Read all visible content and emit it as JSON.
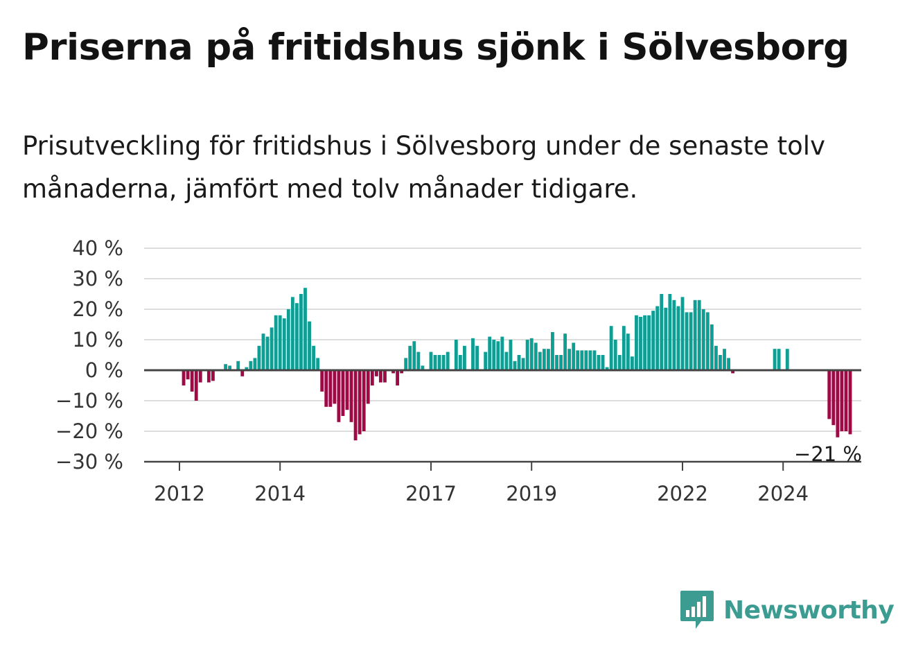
{
  "title": "Priserna på fritidshus sjönk i Sölvesborg",
  "subtitle": "Prisutveckling för fritidshus i Sölvesborg under de senaste tolv månaderna, jämfört med tolv månader tidigare.",
  "logo": {
    "text": "Newsworthy",
    "icon": "bar-chart-speech-bubble-icon"
  },
  "colors": {
    "positive": "#0e9e94",
    "negative": "#9e0a45",
    "grid": "#dddddd",
    "zero_line": "#444444",
    "logo": "#3d9c92"
  },
  "chart_data": {
    "type": "bar",
    "title": "Priserna på fritidshus sjönk i Sölvesborg",
    "xlabel": "",
    "ylabel": "",
    "ylim": [
      -30,
      40
    ],
    "yticks": [
      40,
      30,
      20,
      10,
      0,
      -10,
      -20,
      -30
    ],
    "ytick_labels": [
      "40 %",
      "30 %",
      "20 %",
      "10 %",
      "0 %",
      "−10 %",
      "−20 %",
      "−30 %"
    ],
    "x_start": "2011-10",
    "frequency": "monthly",
    "xticks": [
      "2012",
      "2014",
      "2017",
      "2019",
      "2022",
      "2024"
    ],
    "grid": true,
    "end_annotation": "−21 %",
    "values": [
      null,
      null,
      null,
      null,
      -5,
      -3,
      -7,
      -10,
      -4,
      null,
      -4,
      -3.5,
      null,
      null,
      2,
      1.5,
      null,
      3,
      -2,
      1,
      3,
      4,
      8,
      12,
      11,
      14,
      18,
      18,
      17,
      20,
      24,
      22,
      25,
      27,
      16,
      8,
      4,
      -7,
      -12,
      -12,
      -11,
      -17,
      -15,
      -13,
      -17,
      -23,
      -21,
      -20,
      -11,
      -5,
      -2,
      -4,
      -4,
      null,
      -1,
      -5,
      -1,
      4,
      8,
      9.5,
      6,
      1.5,
      null,
      6,
      5,
      5,
      5,
      6,
      null,
      10,
      5,
      8,
      null,
      10.5,
      8,
      null,
      6,
      11,
      10,
      9.5,
      11,
      6,
      10,
      3,
      5,
      4,
      10,
      10.5,
      9,
      6,
      7,
      7,
      12.5,
      5,
      5,
      12,
      7,
      9,
      6.5,
      6.5,
      6.5,
      6.5,
      6.5,
      5,
      5,
      1,
      14.5,
      10,
      5,
      14.5,
      12,
      4.5,
      18,
      17.5,
      18,
      18,
      19.5,
      21,
      25,
      20.5,
      25,
      23,
      21,
      24,
      19,
      19,
      23,
      23,
      20,
      19,
      15,
      8,
      5,
      7,
      4,
      -1,
      null,
      null,
      null,
      null,
      null,
      null,
      null,
      null,
      null,
      7,
      7,
      null,
      7,
      null,
      null,
      null,
      null,
      null,
      null,
      null,
      null,
      null,
      -16,
      -18,
      -22,
      -20,
      -20,
      -21
    ]
  }
}
